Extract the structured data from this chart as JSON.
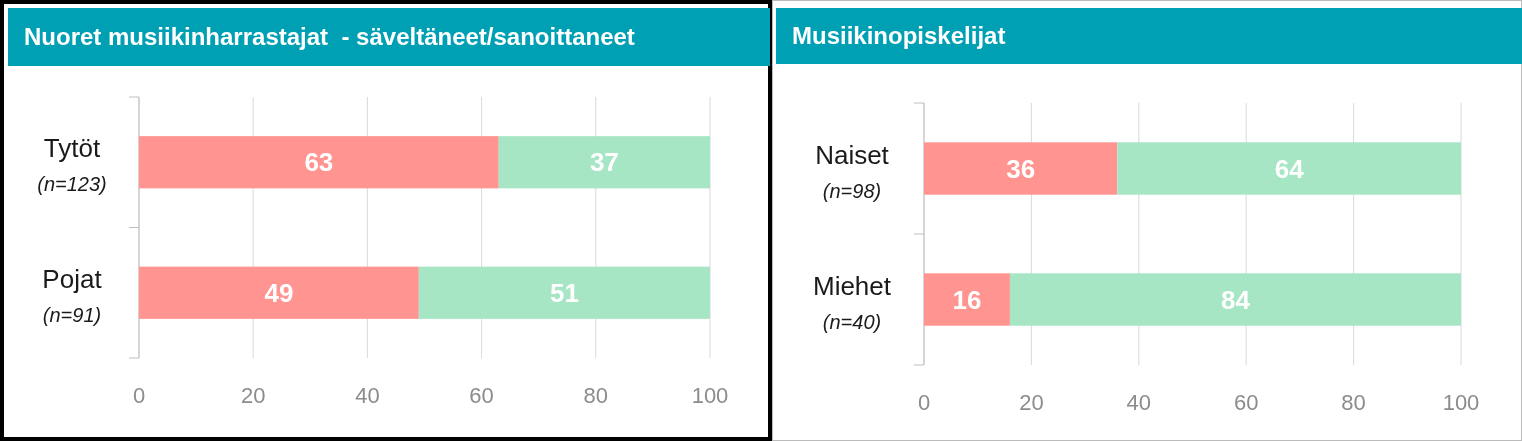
{
  "chart_data": [
    {
      "type": "bar",
      "title": "Nuoret musiikinharrastajat  - säveltäneet/sanoittaneet",
      "orientation": "horizontal",
      "stacked": true,
      "categories": [
        "Tytöt\n(n=123)",
        "Pojat\n(n=91)"
      ],
      "series": [
        {
          "color": "#ff9490",
          "values": [
            63,
            49
          ]
        },
        {
          "color": "#a6e6c4",
          "values": [
            37,
            51
          ]
        }
      ],
      "xlim": [
        0,
        100
      ],
      "xticks": [
        0,
        20,
        40,
        60,
        80,
        100
      ],
      "grid": "x",
      "data_labels": true
    },
    {
      "type": "bar",
      "title": "Musiikinopiskelijat",
      "orientation": "horizontal",
      "stacked": true,
      "categories": [
        "Naiset\n(n=98)",
        "Miehet\n(n=40)"
      ],
      "series": [
        {
          "color": "#ff9490",
          "values": [
            36,
            16
          ]
        },
        {
          "color": "#a6e6c4",
          "values": [
            64,
            84
          ]
        }
      ],
      "xlim": [
        0,
        100
      ],
      "xticks": [
        0,
        20,
        40,
        60,
        80,
        100
      ],
      "grid": "x",
      "data_labels": true
    }
  ]
}
